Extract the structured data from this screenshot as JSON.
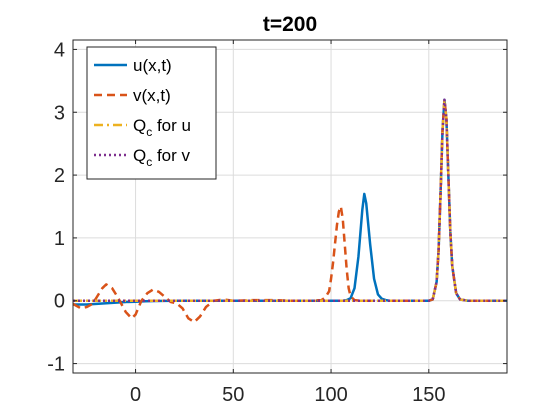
{
  "chart_data": {
    "type": "line",
    "title": "t=200",
    "xlabel": "",
    "ylabel": "",
    "xlim": [
      -32,
      190
    ],
    "ylim": [
      -1.15,
      4.15
    ],
    "xticks": [
      0,
      50,
      100,
      150
    ],
    "xtick_labels": [
      "0",
      "50",
      "100",
      "150"
    ],
    "yticks": [
      -1,
      0,
      1,
      2,
      3,
      4
    ],
    "ytick_labels": [
      "-1",
      "0",
      "1",
      "2",
      "3",
      "4"
    ],
    "grid": true,
    "legend_position": "top-left",
    "series": [
      {
        "name": "u(x,t)",
        "name_main": "u(x,t)",
        "name_sub": "",
        "name_rest": "",
        "color": "#0072BD",
        "dash": "solid",
        "x": [
          -32,
          -25,
          -20,
          -15,
          -10,
          -5,
          0,
          5,
          10,
          20,
          40,
          60,
          80,
          100,
          106,
          108,
          110,
          112,
          114,
          116,
          117,
          118,
          120,
          122,
          124,
          126,
          128,
          130,
          135,
          140,
          150,
          152,
          154,
          155,
          156,
          157,
          158,
          159,
          160,
          161,
          162,
          164,
          166,
          170,
          180,
          190
        ],
        "y": [
          -0.06,
          -0.06,
          -0.05,
          -0.04,
          -0.03,
          -0.02,
          -0.015,
          -0.008,
          -0.004,
          0.0,
          0.0,
          0.0,
          0.0,
          0.0,
          0.0,
          0.01,
          0.04,
          0.2,
          0.7,
          1.45,
          1.7,
          1.55,
          0.9,
          0.35,
          0.1,
          0.03,
          0.01,
          0.0,
          0.0,
          0.0,
          0.0,
          0.02,
          0.3,
          0.8,
          1.7,
          2.7,
          3.2,
          2.9,
          2.0,
          1.1,
          0.55,
          0.12,
          0.02,
          0.0,
          0.0,
          0.0
        ]
      },
      {
        "name": "v(x,t)",
        "name_main": "v(x,t)",
        "name_sub": "",
        "name_rest": "",
        "color": "#D95319",
        "dash": "dashed",
        "x": [
          -32,
          -28,
          -25,
          -22,
          -20,
          -17,
          -15,
          -12,
          -9,
          -5,
          -2,
          0,
          3,
          6,
          9,
          12,
          15,
          18,
          21,
          24,
          27,
          30,
          33,
          36,
          40,
          45,
          50,
          60,
          70,
          80,
          90,
          95,
          97,
          99,
          100,
          101,
          102,
          103,
          104,
          105,
          106,
          107,
          108,
          109,
          110,
          112,
          115,
          120,
          130,
          140,
          150,
          152,
          154,
          155,
          156,
          157,
          158,
          159,
          160,
          161,
          162,
          164,
          166,
          170,
          180,
          190
        ],
        "y": [
          -0.05,
          -0.12,
          -0.1,
          -0.05,
          0.05,
          0.2,
          0.26,
          0.2,
          0.05,
          -0.18,
          -0.28,
          -0.22,
          0.0,
          0.12,
          0.18,
          0.14,
          0.06,
          -0.02,
          -0.04,
          -0.12,
          -0.28,
          -0.34,
          -0.25,
          -0.1,
          0.0,
          0.02,
          0.0,
          0.01,
          0.01,
          0.0,
          0.0,
          0.01,
          0.05,
          0.15,
          0.35,
          0.6,
          0.9,
          1.2,
          1.42,
          1.5,
          1.3,
          0.9,
          0.5,
          0.2,
          0.07,
          0.01,
          0.0,
          0.0,
          0.0,
          0.0,
          0.0,
          0.02,
          0.3,
          0.8,
          1.7,
          2.7,
          3.2,
          2.9,
          2.0,
          1.1,
          0.55,
          0.12,
          0.02,
          0.0,
          0.0,
          0.0
        ]
      },
      {
        "name": "Q_c for u",
        "name_main": "Q",
        "name_sub": "c",
        "name_rest": " for u",
        "color": "#EDB120",
        "dash": "dashdot",
        "x": [
          -32,
          140,
          150,
          152,
          154,
          155,
          156,
          157,
          158,
          159,
          160,
          161,
          162,
          164,
          166,
          170,
          180,
          190
        ],
        "y": [
          0.0,
          0.0,
          0.0,
          0.02,
          0.3,
          0.8,
          1.7,
          2.7,
          3.2,
          2.9,
          2.0,
          1.1,
          0.55,
          0.12,
          0.02,
          0.0,
          0.0,
          0.0
        ]
      },
      {
        "name": "Q_c for v",
        "name_main": "Q",
        "name_sub": "c",
        "name_rest": " for v",
        "color": "#7E2F8E",
        "dash": "dotted",
        "x": [
          -32,
          140,
          150,
          152,
          154,
          155,
          156,
          157,
          158,
          159,
          160,
          161,
          162,
          164,
          166,
          170,
          180,
          190
        ],
        "y": [
          0.0,
          0.0,
          0.0,
          0.02,
          0.3,
          0.8,
          1.7,
          2.7,
          3.2,
          2.9,
          2.0,
          1.1,
          0.55,
          0.12,
          0.02,
          0.0,
          0.0,
          0.0
        ]
      }
    ]
  }
}
